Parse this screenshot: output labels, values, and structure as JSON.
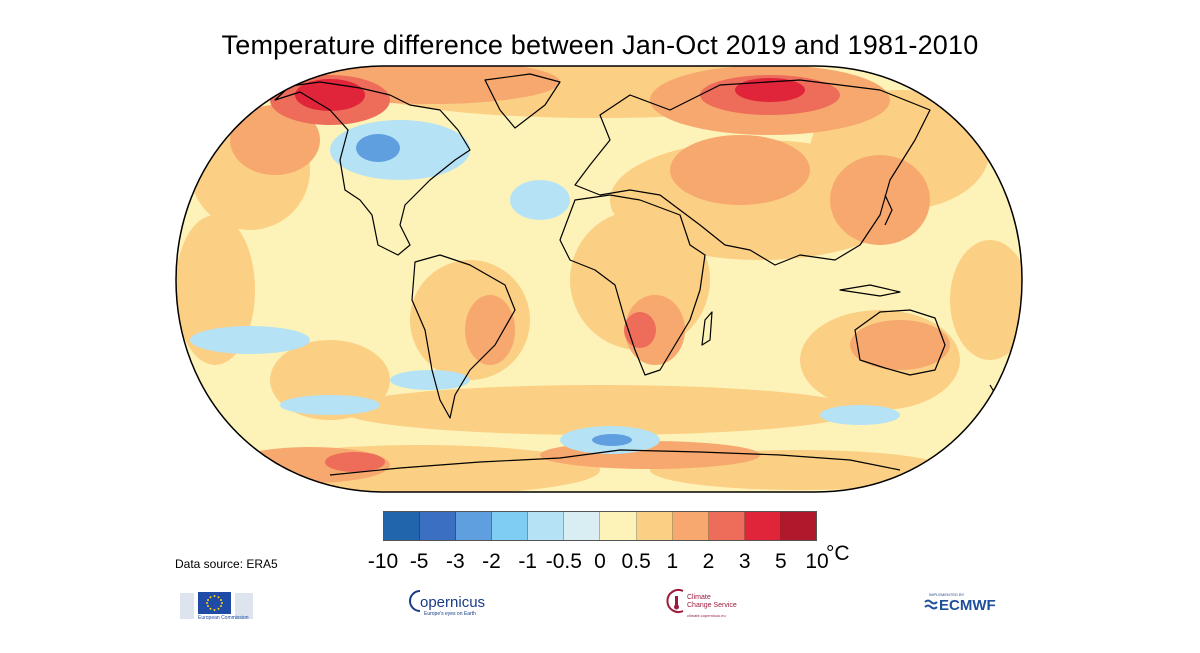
{
  "title": "Temperature difference between Jan-Oct 2019 and 1981-2010",
  "legend": {
    "colors": [
      "#2166ac",
      "#3b6fc2",
      "#5f9fe0",
      "#7fcdf2",
      "#b5e2f4",
      "#d8eef3",
      "#fdf3b8",
      "#fbcf84",
      "#f6a86f",
      "#ed6c5a",
      "#e0243a",
      "#b2182b"
    ],
    "ticks": [
      "-10",
      "-5",
      "-3",
      "-2",
      "-1",
      "-0.5",
      "0",
      "0.5",
      "1",
      "2",
      "3",
      "5",
      "10"
    ],
    "unit": "°C"
  },
  "data_source": "Data source: ERA5",
  "logos": {
    "eu": "European Commission",
    "copernicus": "opernicus",
    "copernicus_sub": "Europe's eyes on Earth",
    "c3s": "Climate Change Service",
    "c3s_sub": "climate.copernicus.eu",
    "ecmwf_pre": "IMPLEMENTED BY",
    "ecmwf": "ECMWF"
  },
  "map": {
    "base_color": "#fdf3b8",
    "warm_color": "#fbcf84",
    "hot_color": "#f6a86f",
    "very_hot_color": "#ed6c5a",
    "extreme_color": "#e0243a",
    "cool_color": "#b5e2f4",
    "cold_color": "#5f9fe0",
    "coast_color": "#000000"
  }
}
